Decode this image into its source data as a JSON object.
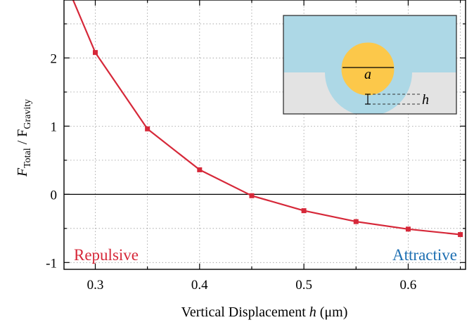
{
  "chart_data": {
    "type": "line",
    "xlabel_prefix": "Vertical Displacement ",
    "xlabel_var": "h",
    "xlabel_unit": " (μm)",
    "ylabel_main": "F",
    "ylabel_main_sub": "Total",
    "ylabel_sep": " / F",
    "ylabel_denom_sub": "Gravity",
    "xlim": [
      0.27,
      0.655
    ],
    "ylim": [
      -1.1,
      2.85
    ],
    "grid": true,
    "x_ticks": [
      0.3,
      0.4,
      0.5,
      0.6
    ],
    "x_tick_labels": [
      "0.3",
      "0.4",
      "0.5",
      "0.6"
    ],
    "x_minor_ticks": [
      0.35,
      0.45,
      0.55,
      0.65
    ],
    "y_ticks": [
      -1,
      0,
      1,
      2
    ],
    "y_tick_labels": [
      "-1",
      "0",
      "1",
      "2"
    ],
    "y_minor_ticks": [
      -0.5,
      0.5,
      1.5,
      2.5
    ],
    "zero_line": true,
    "series": [
      {
        "color": "#d62839",
        "x": [
          0.258,
          0.3,
          0.35,
          0.4,
          0.45,
          0.5,
          0.55,
          0.6,
          0.65
        ],
        "y": [
          3.6,
          2.08,
          0.96,
          0.36,
          -0.02,
          -0.24,
          -0.4,
          -0.51,
          -0.59
        ],
        "marker_x": [
          0.3,
          0.35,
          0.4,
          0.45,
          0.5,
          0.55,
          0.6,
          0.65
        ],
        "marker_y": [
          2.08,
          0.96,
          0.36,
          -0.02,
          -0.24,
          -0.4,
          -0.51,
          -0.59
        ]
      }
    ],
    "annotations": [
      {
        "text": "Repulsive",
        "color": "#d62839"
      },
      {
        "text": "Attractive",
        "color": "#1d6fb2"
      }
    ],
    "inset": {
      "label_a": "a",
      "label_h": "h",
      "colors": {
        "liquid": "#add8e6",
        "substrate": "#e3e3e3",
        "particle": "#fcc84a"
      }
    }
  }
}
